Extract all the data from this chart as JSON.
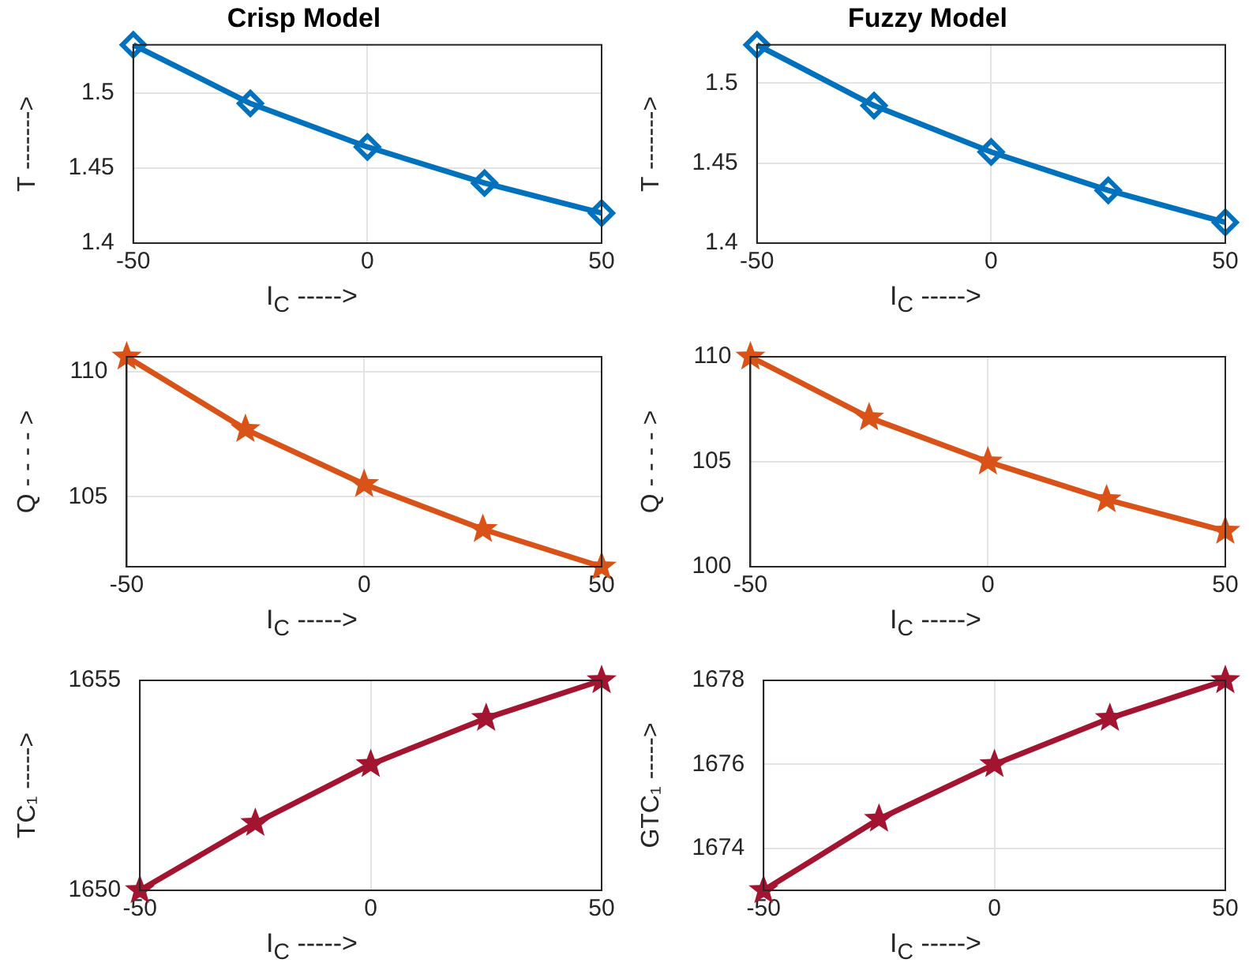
{
  "chart_data": [
    {
      "type": "line",
      "title": "Crisp Model",
      "xlabel": "I$_{C}$ ----->",
      "ylabel": "T ------->",
      "x": [
        -50,
        -25,
        0,
        25,
        50
      ],
      "xlim": [
        -50,
        50
      ],
      "xticks": [
        -50,
        0,
        50
      ],
      "ylim": [
        1.4,
        1.532
      ],
      "yticks": [
        1.4,
        1.45,
        1.5
      ],
      "grid": true,
      "marker": "diamond",
      "line_style": "solid",
      "series": [
        {
          "color": "#0072bd",
          "values": [
            1.532,
            1.493,
            1.464,
            1.44,
            1.42
          ]
        }
      ]
    },
    {
      "type": "line",
      "title": "Fuzzy Model",
      "xlabel": "I$_{C}$ ----->",
      "ylabel": "T ------->",
      "x": [
        -50,
        -25,
        0,
        25,
        50
      ],
      "xlim": [
        -50,
        50
      ],
      "xticks": [
        -50,
        0,
        50
      ],
      "ylim": [
        1.4,
        1.524
      ],
      "yticks": [
        1.4,
        1.45,
        1.5
      ],
      "grid": true,
      "marker": "diamond",
      "line_style": "solid",
      "series": [
        {
          "color": "#0072bd",
          "values": [
            1.524,
            1.486,
            1.457,
            1.433,
            1.413
          ]
        }
      ]
    },
    {
      "type": "line",
      "xlabel": "I$_{C}$ ----->",
      "ylabel": "Q - - - - >",
      "x": [
        -50,
        -25,
        0,
        25,
        50
      ],
      "xlim": [
        -50,
        50
      ],
      "xticks": [
        -50,
        0,
        50
      ],
      "ylim": [
        102.2,
        110.6
      ],
      "yticks": [
        105,
        110
      ],
      "grid": true,
      "marker": "star",
      "line_style": "solid",
      "series": [
        {
          "color": "#d95319",
          "values": [
            110.6,
            107.7,
            105.5,
            103.7,
            102.2
          ]
        }
      ]
    },
    {
      "type": "line",
      "xlabel": "I$_{C}$ ----->",
      "ylabel": "Q - - - - >",
      "x": [
        -50,
        -25,
        0,
        25,
        50
      ],
      "xlim": [
        -50,
        50
      ],
      "xticks": [
        -50,
        0,
        50
      ],
      "ylim": [
        100,
        110
      ],
      "yticks": [
        100,
        105,
        110
      ],
      "grid": true,
      "marker": "star",
      "line_style": "solid",
      "series": [
        {
          "color": "#d95319",
          "values": [
            110,
            107.1,
            105,
            103.2,
            101.7
          ]
        }
      ]
    },
    {
      "type": "line",
      "xlabel": "I$_{C}$ ----->",
      "ylabel": "TC₁ ----->",
      "x": [
        -50,
        -25,
        0,
        25,
        50
      ],
      "xlim": [
        -50,
        50
      ],
      "xticks": [
        -50,
        0,
        50
      ],
      "ylim": [
        1650,
        1655
      ],
      "yticks": [
        1650,
        1655
      ],
      "grid": true,
      "marker": "star",
      "line_style": "solid",
      "series": [
        {
          "color": "#a2142f",
          "values": [
            1650,
            1651.6,
            1653,
            1654.1,
            1655
          ]
        }
      ]
    },
    {
      "type": "line",
      "xlabel": "I$_{C}$ ----->",
      "ylabel": "GTC₁ ----->",
      "x": [
        -50,
        -25,
        0,
        25,
        50
      ],
      "xlim": [
        -50,
        50
      ],
      "xticks": [
        -50,
        0,
        50
      ],
      "ylim": [
        1673,
        1678
      ],
      "yticks": [
        1674,
        1676,
        1678
      ],
      "grid": true,
      "marker": "star",
      "line_style": "solid",
      "series": [
        {
          "color": "#a2142f",
          "values": [
            1673,
            1674.7,
            1676,
            1677.1,
            1678
          ]
        }
      ]
    }
  ]
}
